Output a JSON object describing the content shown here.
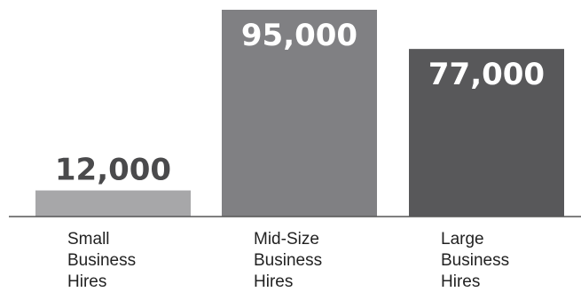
{
  "chart_data": {
    "type": "bar",
    "title": "",
    "xlabel": "",
    "ylabel": "",
    "categories": [
      "Small Business Hires",
      "Mid-Size Business Hires",
      "Large Business Hires"
    ],
    "category_lines": [
      [
        "Small",
        "Business",
        "Hires"
      ],
      [
        "Mid-Size",
        "Business",
        "Hires"
      ],
      [
        "Large",
        "Business",
        "Hires"
      ]
    ],
    "values": [
      12000,
      95000,
      77000
    ],
    "value_labels": [
      "12,000",
      "95,000",
      "77,000"
    ],
    "bar_colors": [
      "#a7a7a9",
      "#808083",
      "#58585a"
    ],
    "value_label_colors": [
      "#4a4a4c",
      "#ffffff",
      "#ffffff"
    ],
    "ylim": [
      0,
      95000
    ],
    "grid": false,
    "legend": "none"
  }
}
